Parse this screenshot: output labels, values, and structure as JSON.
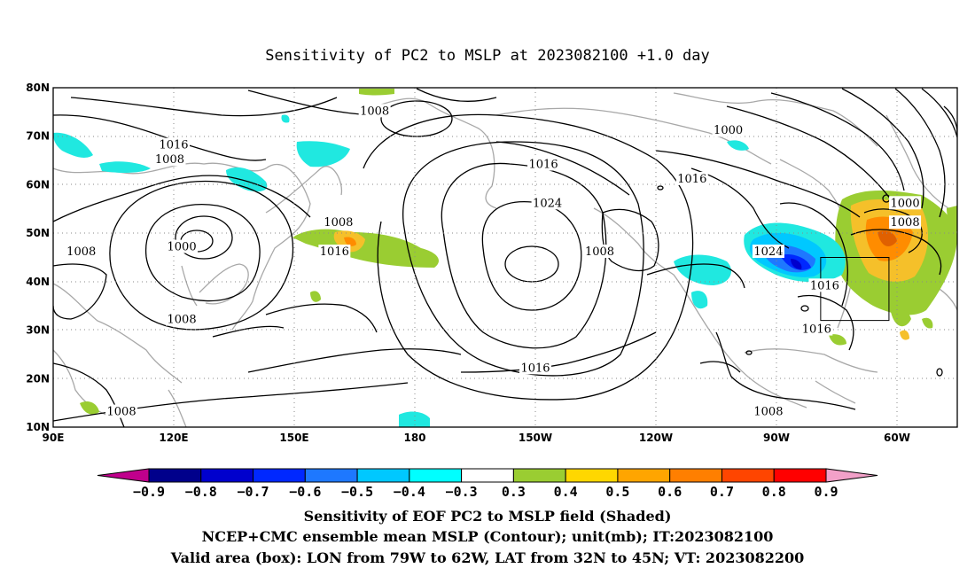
{
  "title": "Sensitivity of PC2 to MSLP at 2023082100 +1.0 day",
  "map": {
    "lat_labels": [
      "80N",
      "70N",
      "60N",
      "50N",
      "40N",
      "30N",
      "20N",
      "10N"
    ],
    "lon_labels": [
      "90E",
      "120E",
      "150E",
      "180",
      "150W",
      "120W",
      "90W",
      "60W"
    ],
    "grid": "dotted",
    "shading_colors": {
      "positive_low": "#9acd32",
      "positive_mid": "#f5c02a",
      "positive_high": "#ff8c00",
      "negative_low": "#20e8e0",
      "negative_mid": "#1e90ff",
      "negative_high": "#0000cd"
    },
    "contour_labels": [
      {
        "text": "1008",
        "lon": 170,
        "lat": 75
      },
      {
        "text": "1016",
        "lon": 120,
        "lat": 68
      },
      {
        "text": "1008",
        "lon": 119,
        "lat": 65
      },
      {
        "text": "1000",
        "lon": 258,
        "lat": 71
      },
      {
        "text": "1016",
        "lon": 212,
        "lat": 64
      },
      {
        "text": "1016",
        "lon": 249,
        "lat": 61
      },
      {
        "text": "1024",
        "lon": 213,
        "lat": 56
      },
      {
        "text": "1008",
        "lon": 161,
        "lat": 52
      },
      {
        "text": "1000",
        "lon": 302,
        "lat": 56
      },
      {
        "text": "1008",
        "lon": 302,
        "lat": 52
      },
      {
        "text": "1016",
        "lon": 160,
        "lat": 46
      },
      {
        "text": "1000",
        "lon": 122,
        "lat": 47
      },
      {
        "text": "1008",
        "lon": 97,
        "lat": 46
      },
      {
        "text": "1008",
        "lon": 226,
        "lat": 46
      },
      {
        "text": "1024",
        "lon": 268,
        "lat": 46
      },
      {
        "text": "1016",
        "lon": 282,
        "lat": 39
      },
      {
        "text": "1008",
        "lon": 122,
        "lat": 32
      },
      {
        "text": "1016",
        "lon": 280,
        "lat": 30
      },
      {
        "text": "1016",
        "lon": 210,
        "lat": 22
      },
      {
        "text": "1008",
        "lon": 107,
        "lat": 13
      },
      {
        "text": "1008",
        "lon": 268,
        "lat": 13
      }
    ],
    "valid_box": {
      "lon_min": 281,
      "lon_max": 298,
      "lat_min": 32,
      "lat_max": 45
    }
  },
  "colorbar": {
    "labels": [
      "−0.9",
      "−0.8",
      "−0.7",
      "−0.6",
      "−0.5",
      "−0.4",
      "−0.3",
      "0.3",
      "0.4",
      "0.5",
      "0.6",
      "0.7",
      "0.8",
      "0.9"
    ],
    "colors": [
      "#00008b",
      "#0000cd",
      "#0028ff",
      "#1e78ff",
      "#00c8ff",
      "#00ffff",
      "#ffffff",
      "#9acd32",
      "#ffd700",
      "#ffa500",
      "#ff7f00",
      "#ff4500",
      "#ff0000"
    ],
    "end_low": "#c0008c",
    "end_high": "#f2a0c8"
  },
  "captions": [
    "Sensitivity of EOF PC2 to MSLP field (Shaded)",
    "NCEP+CMC ensemble mean MSLP (Contour); unit(mb); IT:2023082100",
    "Valid area (box): LON from 79W to 62W, LAT from 32N to 45N; VT: 2023082200"
  ]
}
